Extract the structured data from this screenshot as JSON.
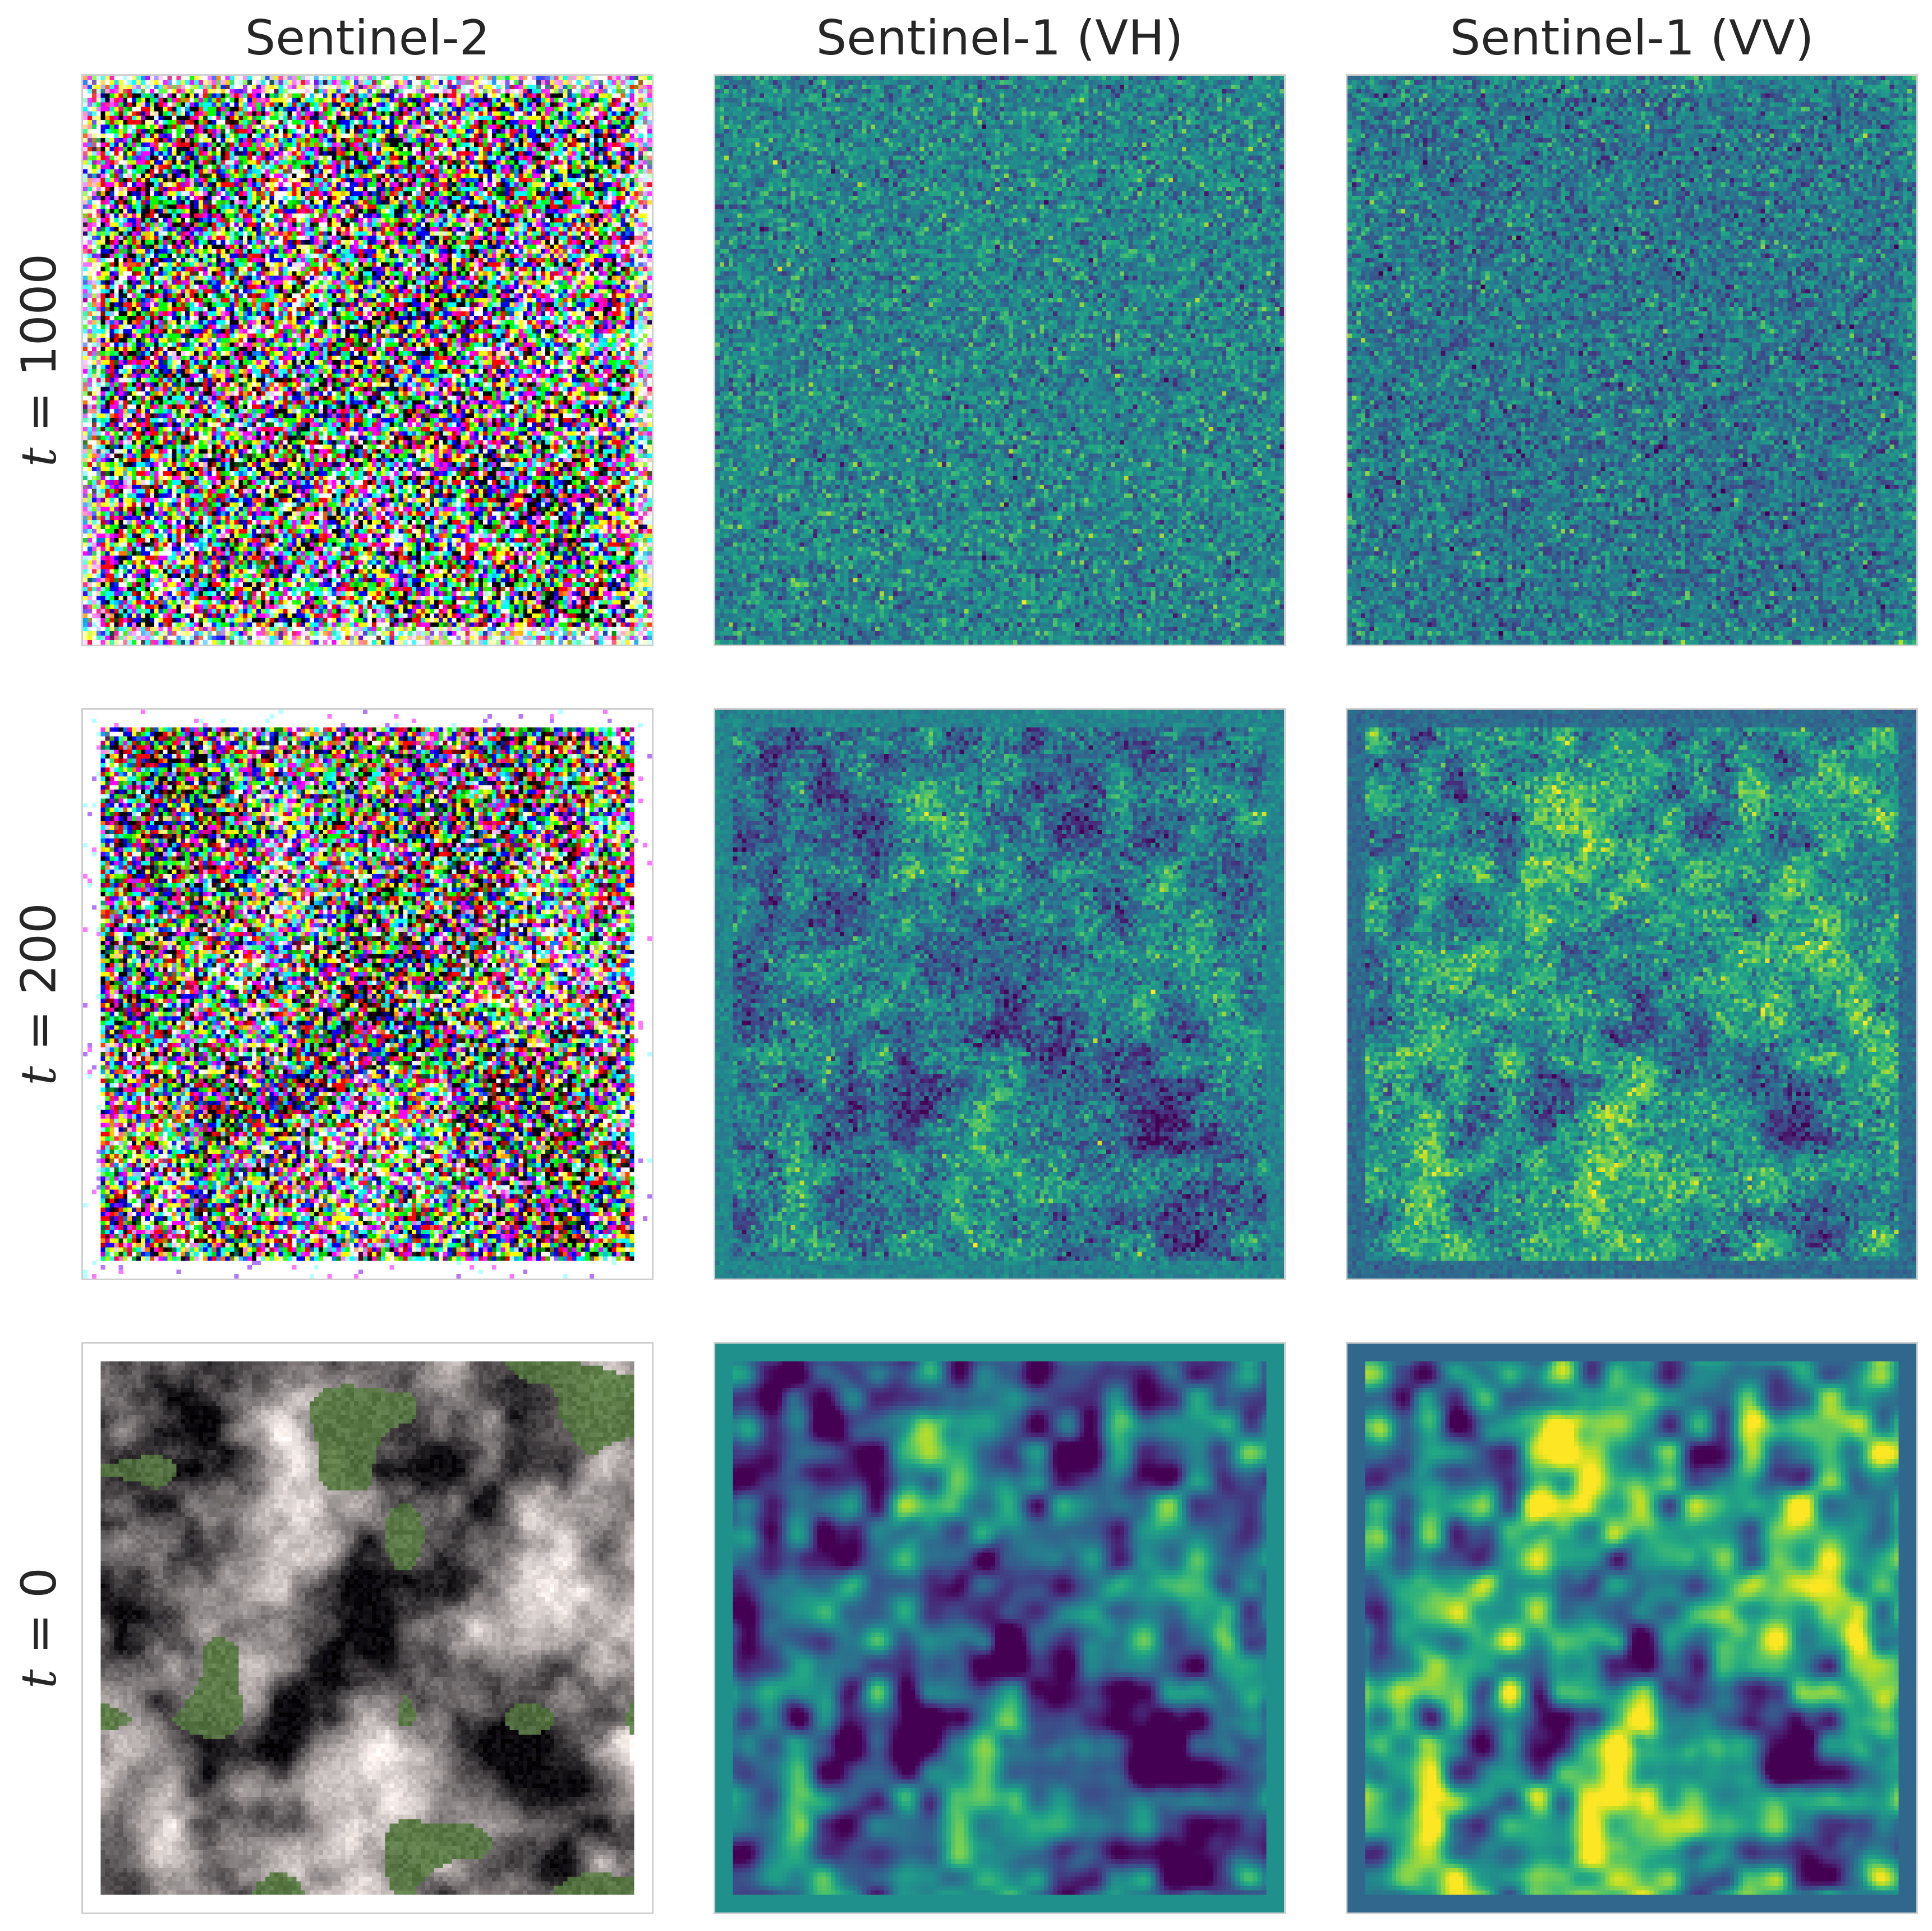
{
  "columns": [
    {
      "title": "Sentinel-2",
      "kind": "rgb"
    },
    {
      "title": "Sentinel-1 (VH)",
      "kind": "viridis",
      "channel": "VH"
    },
    {
      "title": "Sentinel-1 (VV)",
      "kind": "viridis",
      "channel": "VV"
    }
  ],
  "rows": [
    {
      "label_var": "t",
      "label_rest": " = 1000",
      "noise": 1.0
    },
    {
      "label_var": "t",
      "label_rest": " = 200",
      "noise": 0.55
    },
    {
      "label_var": "t",
      "label_rest": " = 0",
      "noise": 0.0
    }
  ],
  "colors": {
    "frame": "#cfcfcf",
    "text": "#262626",
    "viridis_low": "#440154",
    "viridis_mid": "#21918c",
    "viridis_high": "#fde725"
  }
}
